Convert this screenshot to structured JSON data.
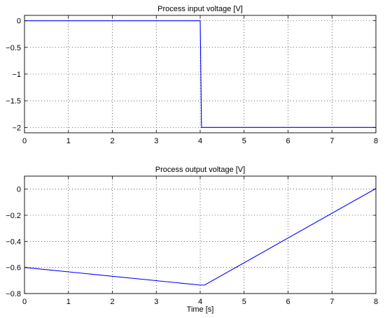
{
  "chart_data": [
    {
      "type": "line",
      "title": "Process input voltage [V]",
      "xlabel": "",
      "ylabel": "",
      "xlim": [
        0,
        8
      ],
      "ylim": [
        -2.1,
        0.1
      ],
      "xticks": [
        "0",
        "1",
        "2",
        "3",
        "4",
        "5",
        "6",
        "7",
        "8"
      ],
      "yticks": [
        "0",
        "−0.5",
        "−1",
        "−1.5",
        "−2"
      ],
      "grid": true,
      "series": [
        {
          "color": "#0000ff",
          "x": [
            0,
            4.0,
            4.03,
            8
          ],
          "y": [
            0,
            0,
            -2,
            -2
          ]
        }
      ]
    },
    {
      "type": "line",
      "title": "Process output voltage [V]",
      "xlabel": "Time [s]",
      "ylabel": "",
      "xlim": [
        0,
        8
      ],
      "ylim": [
        -0.8,
        0.1
      ],
      "xticks": [
        "0",
        "1",
        "2",
        "3",
        "4",
        "5",
        "6",
        "7",
        "8"
      ],
      "yticks": [
        "0",
        "−0.2",
        "−0.4",
        "−0.6",
        "−0.8"
      ],
      "grid": true,
      "series": [
        {
          "color": "#0000ff",
          "x": [
            0,
            4.0,
            4.1,
            8
          ],
          "y": [
            -0.6,
            -0.735,
            -0.735,
            0.005
          ]
        }
      ]
    }
  ]
}
